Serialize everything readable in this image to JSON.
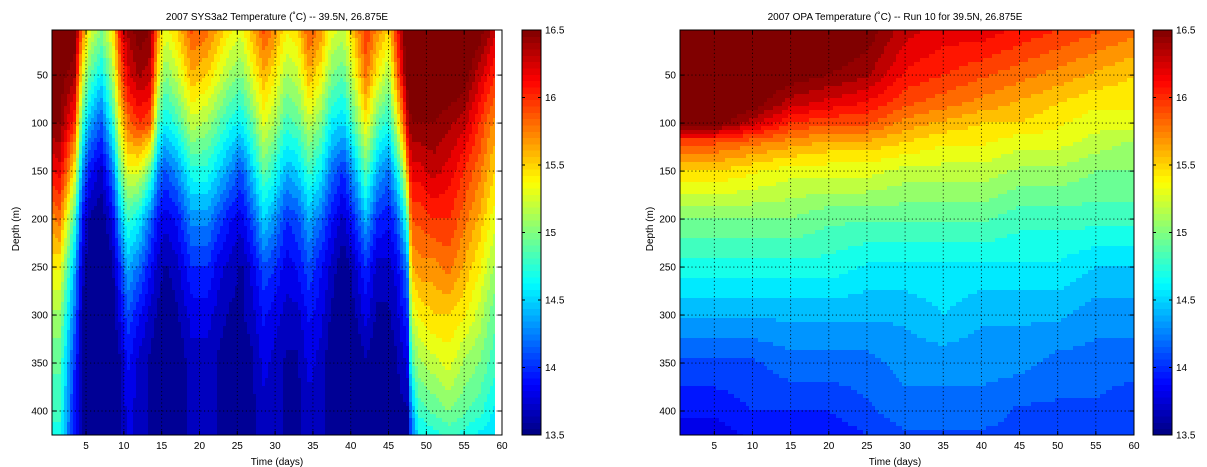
{
  "chart_data": [
    {
      "type": "heatmap",
      "title": "2007 SYS3a2 Temperature (˚C) -- 39.5N, 26.875E",
      "xlabel": "Time (days)",
      "ylabel": "Depth (m)",
      "xlim": [
        0.5,
        60
      ],
      "ylim": [
        425,
        3
      ],
      "y_reversed": true,
      "x_ticks": [
        5,
        10,
        15,
        20,
        25,
        30,
        35,
        40,
        45,
        50,
        55,
        60
      ],
      "y_ticks": [
        50,
        100,
        150,
        200,
        250,
        300,
        350,
        400
      ],
      "grid": true,
      "colormap": "jet",
      "clim": [
        13.5,
        16.5
      ],
      "colorbar_ticks": [
        13.5,
        14,
        14.5,
        15,
        15.5,
        16,
        16.5
      ],
      "data_extent_x": [
        0.5,
        59
      ],
      "profile_days": [
        0.5,
        1.5,
        3.5,
        4.5,
        5.5,
        7,
        8.5,
        9.5,
        10.5,
        12,
        13.5,
        14.5,
        15.5,
        17,
        19,
        21,
        22.5,
        24,
        25.5,
        27,
        28.5,
        30,
        31.5,
        33,
        34.5,
        36,
        37.5,
        39,
        40.5,
        42,
        43.5,
        45,
        46,
        47,
        47.5,
        48,
        49,
        51,
        53,
        55,
        57,
        59
      ],
      "profile_depths": [
        3,
        50,
        100,
        150,
        200,
        250,
        300,
        350,
        400,
        425
      ],
      "profiles": [
        [
          16.7,
          16.6,
          16.5,
          16.1,
          15.7,
          15.4,
          15.1,
          14.9,
          14.8,
          14.7
        ],
        [
          16.7,
          16.6,
          16.5,
          16.2,
          15.8,
          15.4,
          15.1,
          14.9,
          14.8,
          14.7
        ],
        [
          16.6,
          16.4,
          16.0,
          15.4,
          14.8,
          14.4,
          14.2,
          14.0,
          13.9,
          13.9
        ],
        [
          15.8,
          15.3,
          14.8,
          14.3,
          13.9,
          13.7,
          13.6,
          13.6,
          13.6,
          13.6
        ],
        [
          15.3,
          14.9,
          14.4,
          13.9,
          13.6,
          13.5,
          13.4,
          13.4,
          13.4,
          13.4
        ],
        [
          15.0,
          14.6,
          14.1,
          13.7,
          13.5,
          13.4,
          13.4,
          13.4,
          13.4,
          13.4
        ],
        [
          15.4,
          15.1,
          14.7,
          14.2,
          13.8,
          13.6,
          13.5,
          13.5,
          13.5,
          13.5
        ],
        [
          16.1,
          15.8,
          15.4,
          14.9,
          14.4,
          14.0,
          13.8,
          13.6,
          13.6,
          13.6
        ],
        [
          16.4,
          16.2,
          15.8,
          15.3,
          14.8,
          14.4,
          14.1,
          13.9,
          13.8,
          13.8
        ],
        [
          16.6,
          16.4,
          16.0,
          15.3,
          14.6,
          14.2,
          13.9,
          13.7,
          13.7,
          13.7
        ],
        [
          16.5,
          16.3,
          15.9,
          14.9,
          14.2,
          13.9,
          13.7,
          13.6,
          13.6,
          13.6
        ],
        [
          15.7,
          15.4,
          14.9,
          14.3,
          13.9,
          13.7,
          13.6,
          13.5,
          13.5,
          13.5
        ],
        [
          15.3,
          15.0,
          14.6,
          14.1,
          13.8,
          13.6,
          13.5,
          13.5,
          13.5,
          13.5
        ],
        [
          15.5,
          15.2,
          14.8,
          14.3,
          13.9,
          13.7,
          13.6,
          13.5,
          13.5,
          13.5
        ],
        [
          15.9,
          15.6,
          15.2,
          14.7,
          14.3,
          14.0,
          13.8,
          13.7,
          13.7,
          13.7
        ],
        [
          15.8,
          15.5,
          15.1,
          14.7,
          14.3,
          14.0,
          13.8,
          13.7,
          13.7,
          13.7
        ],
        [
          15.6,
          15.3,
          14.9,
          14.5,
          14.1,
          13.8,
          13.7,
          13.6,
          13.6,
          13.6
        ],
        [
          15.4,
          15.1,
          14.7,
          14.3,
          13.9,
          13.7,
          13.6,
          13.5,
          13.5,
          13.5
        ],
        [
          15.3,
          15.0,
          14.6,
          14.1,
          13.8,
          13.6,
          13.6,
          13.5,
          13.5,
          13.5
        ],
        [
          15.6,
          15.3,
          14.9,
          14.5,
          14.1,
          13.8,
          13.7,
          13.6,
          13.6,
          13.6
        ],
        [
          15.9,
          15.6,
          15.3,
          14.9,
          14.5,
          14.1,
          13.9,
          13.8,
          13.7,
          13.7
        ],
        [
          15.7,
          15.4,
          15.1,
          14.7,
          14.3,
          14.0,
          13.8,
          13.7,
          13.7,
          13.7
        ],
        [
          15.4,
          15.1,
          14.8,
          14.4,
          14.0,
          13.8,
          13.7,
          13.6,
          13.6,
          13.6
        ],
        [
          15.5,
          15.2,
          14.9,
          14.5,
          14.1,
          13.9,
          13.7,
          13.6,
          13.6,
          13.6
        ],
        [
          15.9,
          15.6,
          15.2,
          14.8,
          14.4,
          14.1,
          13.9,
          13.8,
          13.7,
          13.7
        ],
        [
          15.7,
          15.4,
          15.0,
          14.6,
          14.2,
          13.9,
          13.8,
          13.7,
          13.7,
          13.7
        ],
        [
          15.3,
          15.0,
          14.6,
          14.2,
          13.9,
          13.7,
          13.6,
          13.5,
          13.5,
          13.5
        ],
        [
          15.2,
          14.9,
          14.5,
          14.0,
          13.7,
          13.5,
          13.5,
          13.4,
          13.4,
          13.4
        ],
        [
          15.6,
          15.3,
          14.9,
          14.4,
          14.0,
          13.7,
          13.6,
          13.5,
          13.5,
          13.5
        ],
        [
          16.0,
          15.8,
          15.4,
          14.9,
          14.4,
          14.0,
          13.8,
          13.6,
          13.6,
          13.6
        ],
        [
          15.7,
          15.4,
          14.9,
          14.4,
          14.0,
          13.7,
          13.6,
          13.5,
          13.5,
          13.5
        ],
        [
          15.5,
          15.1,
          14.7,
          14.2,
          13.9,
          13.7,
          13.6,
          13.5,
          13.5,
          13.5
        ],
        [
          16.0,
          15.7,
          15.2,
          14.6,
          14.1,
          13.8,
          13.7,
          13.6,
          13.6,
          13.6
        ],
        [
          16.5,
          16.3,
          15.8,
          15.1,
          14.5,
          14.1,
          13.9,
          13.7,
          13.6,
          13.6
        ],
        [
          16.8,
          16.6,
          16.3,
          15.7,
          14.9,
          14.3,
          14.0,
          13.8,
          13.6,
          13.6
        ],
        [
          16.8,
          16.7,
          16.5,
          16.2,
          15.9,
          15.6,
          15.2,
          14.8,
          14.3,
          14.1
        ],
        [
          16.8,
          16.7,
          16.5,
          16.2,
          15.9,
          15.7,
          15.4,
          15.1,
          14.8,
          14.6
        ],
        [
          16.8,
          16.7,
          16.5,
          16.3,
          16.0,
          15.7,
          15.5,
          15.2,
          14.9,
          14.7
        ],
        [
          16.8,
          16.7,
          16.4,
          16.2,
          16.0,
          15.8,
          15.5,
          15.3,
          15.0,
          14.8
        ],
        [
          16.7,
          16.6,
          16.3,
          16.0,
          15.8,
          15.6,
          15.4,
          15.1,
          14.9,
          14.7
        ],
        [
          16.6,
          16.3,
          16.0,
          15.8,
          15.6,
          15.4,
          15.2,
          15.0,
          14.8,
          14.6
        ],
        [
          16.3,
          16.0,
          15.7,
          15.5,
          15.3,
          15.1,
          14.9,
          14.8,
          14.6,
          14.5
        ]
      ]
    },
    {
      "type": "heatmap",
      "title": "2007 OPA Temperature (˚C) -- Run 10 for 39.5N, 26.875E",
      "xlabel": "Time (days)",
      "ylabel": "Depth (m)",
      "xlim": [
        0.5,
        60
      ],
      "ylim": [
        425,
        3
      ],
      "y_reversed": true,
      "x_ticks": [
        5,
        10,
        15,
        20,
        25,
        30,
        35,
        40,
        45,
        50,
        55,
        60
      ],
      "y_ticks": [
        50,
        100,
        150,
        200,
        250,
        300,
        350,
        400
      ],
      "grid": true,
      "colormap": "jet",
      "clim": [
        13.5,
        16.5
      ],
      "colorbar_ticks": [
        13.5,
        14,
        14.5,
        15,
        15.5,
        16,
        16.5
      ],
      "data_extent_x": [
        0.5,
        60
      ],
      "profile_days": [
        0.5,
        5,
        10,
        15,
        20,
        25,
        30,
        35,
        40,
        45,
        50,
        55,
        60
      ],
      "profile_depths": [
        3,
        50,
        80,
        100,
        120,
        150,
        200,
        250,
        300,
        350,
        400,
        425
      ],
      "profiles": [
        [
          16.9,
          16.8,
          16.7,
          16.6,
          15.9,
          15.5,
          15.0,
          14.7,
          14.4,
          14.1,
          13.9,
          13.8
        ],
        [
          16.9,
          16.8,
          16.7,
          16.6,
          15.9,
          15.5,
          15.0,
          14.7,
          14.4,
          14.1,
          13.9,
          13.8
        ],
        [
          16.8,
          16.7,
          16.6,
          16.3,
          15.8,
          15.4,
          15.0,
          14.7,
          14.4,
          14.1,
          14.0,
          13.9
        ],
        [
          16.7,
          16.6,
          16.3,
          16.0,
          15.7,
          15.3,
          15.0,
          14.7,
          14.4,
          14.2,
          14.0,
          13.9
        ],
        [
          16.7,
          16.5,
          16.2,
          15.9,
          15.6,
          15.3,
          14.9,
          14.7,
          14.4,
          14.2,
          14.0,
          13.9
        ],
        [
          16.6,
          16.4,
          16.1,
          15.9,
          15.6,
          15.3,
          14.9,
          14.6,
          14.4,
          14.2,
          14.1,
          14.0
        ],
        [
          16.3,
          16.1,
          15.9,
          15.7,
          15.5,
          15.2,
          14.9,
          14.6,
          14.4,
          14.3,
          14.2,
          14.1
        ],
        [
          16.2,
          16.0,
          15.8,
          15.6,
          15.4,
          15.2,
          14.9,
          14.6,
          14.5,
          14.3,
          14.2,
          14.1
        ],
        [
          16.2,
          15.9,
          15.7,
          15.5,
          15.4,
          15.2,
          14.9,
          14.6,
          14.4,
          14.3,
          14.2,
          14.1
        ],
        [
          16.1,
          15.8,
          15.6,
          15.5,
          15.3,
          15.1,
          14.8,
          14.6,
          14.4,
          14.3,
          14.1,
          14.1
        ],
        [
          16.0,
          15.7,
          15.5,
          15.4,
          15.3,
          15.1,
          14.8,
          14.6,
          14.4,
          14.2,
          14.1,
          14.0
        ],
        [
          15.9,
          15.6,
          15.4,
          15.3,
          15.2,
          15.0,
          14.8,
          14.5,
          14.3,
          14.2,
          14.1,
          14.0
        ],
        [
          15.8,
          15.5,
          15.4,
          15.3,
          15.1,
          15.0,
          14.8,
          14.5,
          14.3,
          14.2,
          14.0,
          14.0
        ]
      ]
    }
  ]
}
